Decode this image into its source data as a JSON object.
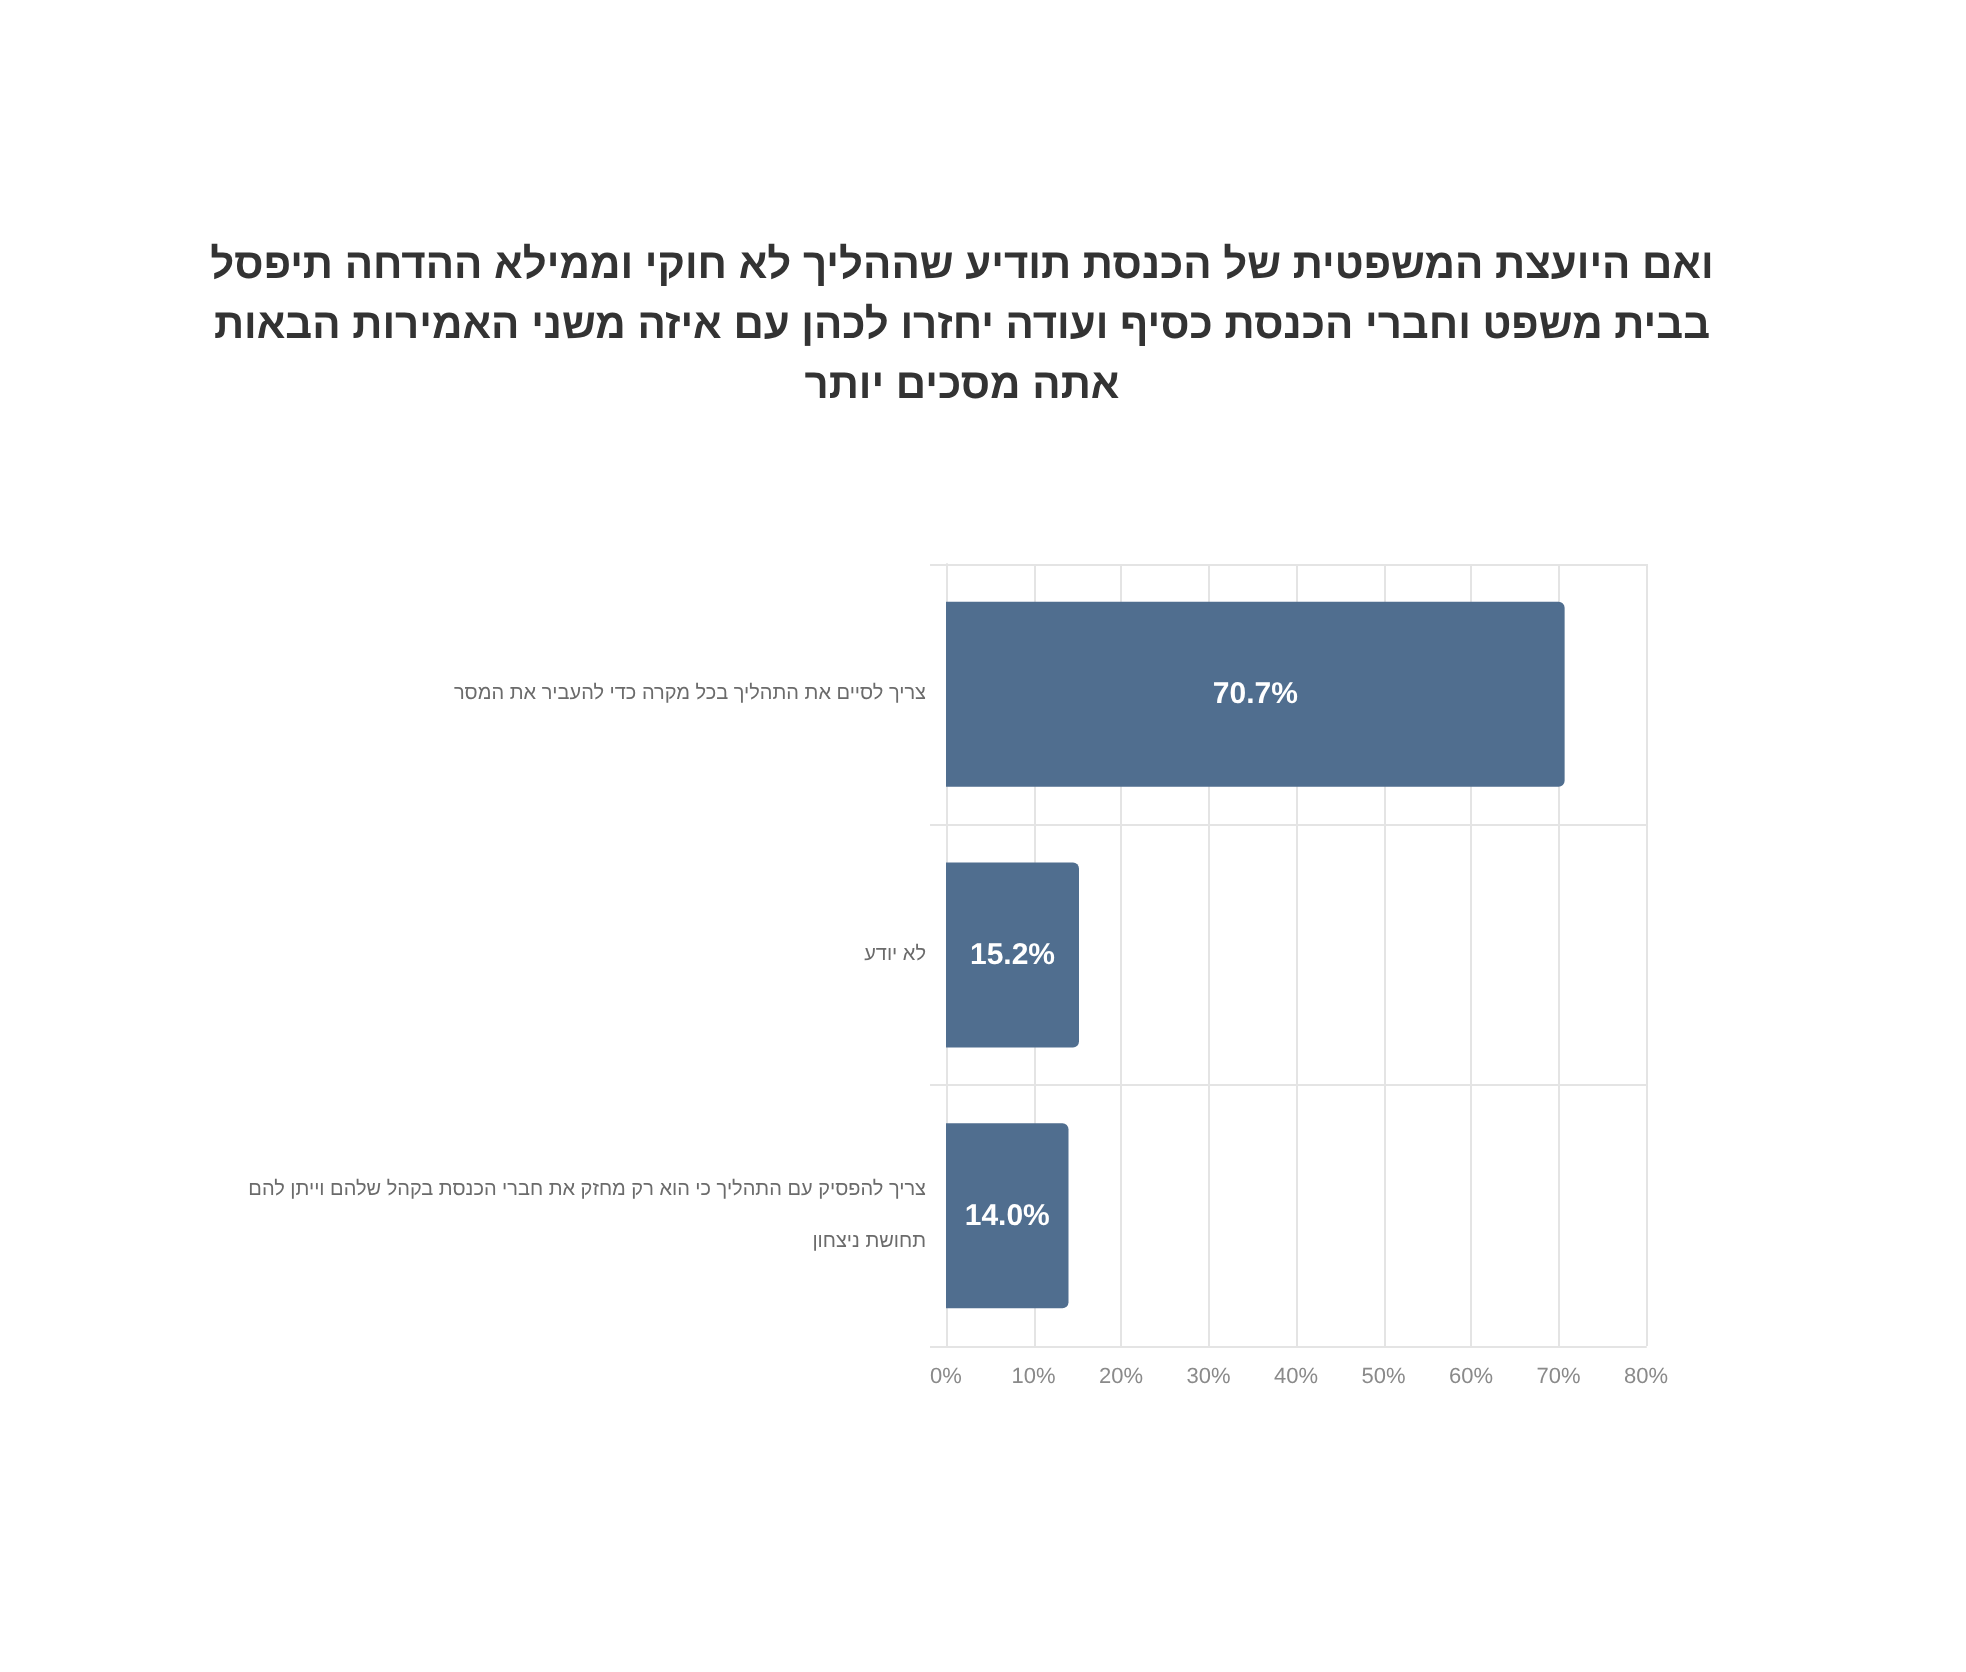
{
  "chart_data": {
    "type": "bar",
    "orientation": "horizontal",
    "title": "ואם היועצת המשפטית של הכנסת תודיע שההליך לא חוקי וממילא ההדחה תיפסל בבית משפט וחברי הכנסת כסיף ועודה יחזרו לכהן עם איזה משני האמירות הבאות אתה מסכים יותר",
    "categories": [
      "צריך לסיים את התהליך בכל מקרה כדי להעביר את המסר",
      "לא יודע",
      "צריך להפסיק עם התהליך כי הוא רק מחזק את חברי הכנסת בקהל שלהם וייתן להם תחושת ניצחון"
    ],
    "values": [
      70.7,
      15.2,
      14.0
    ],
    "value_labels": [
      "70.7%",
      "15.2%",
      "14.0%"
    ],
    "color": "#506e8f",
    "xlim": [
      0,
      80
    ],
    "xticks": [
      {
        "value": 0,
        "label": "0%"
      },
      {
        "value": 10,
        "label": "10%"
      },
      {
        "value": 20,
        "label": "20%"
      },
      {
        "value": 30,
        "label": "30%"
      },
      {
        "value": 40,
        "label": "40%"
      },
      {
        "value": 50,
        "label": "50%"
      },
      {
        "value": 60,
        "label": "60%"
      },
      {
        "value": 70,
        "label": "70%"
      },
      {
        "value": 80,
        "label": "80%"
      }
    ],
    "grid": true
  }
}
